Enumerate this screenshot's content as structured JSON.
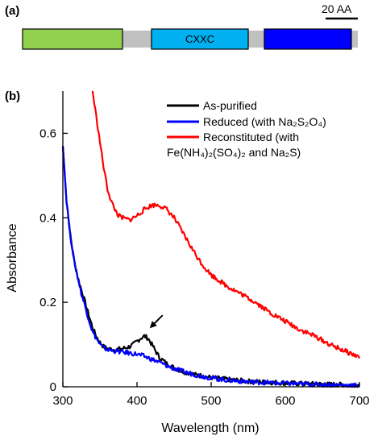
{
  "panel_a": {
    "label": "(a)",
    "scale_bar_label": "20 AA",
    "domain_label": "CXXC",
    "colors": {
      "backbone": "#c0c0c0",
      "domain1": "#92d050",
      "domain2": "#00b0f0",
      "domain3": "#0000ff"
    }
  },
  "panel_b": {
    "label": "(b)"
  },
  "chart_data": {
    "type": "line",
    "xlabel": "Wavelength (nm)",
    "ylabel": "Absorbance",
    "xlim": [
      300,
      700
    ],
    "ylim": [
      0,
      0.7
    ],
    "xticks": [
      "300",
      "400",
      "500",
      "600",
      "700"
    ],
    "yticks": [
      "0",
      "0.2",
      "0.4",
      "0.6"
    ],
    "grid": false,
    "legend_position": "top-right",
    "legend": {
      "as_purified": "As-purified",
      "reduced": "Reduced (with Na₂S₂O₄)",
      "reconstituted_line1": "Reconstituted (with",
      "reconstituted_line2": "Fe(NH₄)₂(SO₄)₂ and Na₂S)"
    },
    "annotation": {
      "type": "arrow",
      "x": 415,
      "y": 0.135
    },
    "series": [
      {
        "key": "as_purified",
        "color": "#000000",
        "x": [
          300,
          305,
          310,
          315,
          320,
          325,
          330,
          335,
          340,
          345,
          350,
          355,
          360,
          370,
          380,
          390,
          395,
          400,
          405,
          410,
          415,
          420,
          425,
          430,
          440,
          450,
          460,
          480,
          500,
          520,
          550,
          600,
          650,
          700
        ],
        "y": [
          0.57,
          0.44,
          0.36,
          0.3,
          0.26,
          0.23,
          0.2,
          0.17,
          0.14,
          0.12,
          0.105,
          0.095,
          0.09,
          0.088,
          0.09,
          0.095,
          0.1,
          0.108,
          0.115,
          0.12,
          0.115,
          0.1,
          0.085,
          0.07,
          0.055,
          0.045,
          0.037,
          0.028,
          0.022,
          0.018,
          0.013,
          0.009,
          0.006,
          0.004
        ]
      },
      {
        "key": "reduced",
        "color": "#0000ff",
        "x": [
          300,
          305,
          310,
          315,
          320,
          325,
          330,
          335,
          340,
          345,
          350,
          355,
          360,
          370,
          380,
          390,
          400,
          410,
          420,
          430,
          440,
          450,
          460,
          480,
          500,
          520,
          550,
          600,
          650,
          700
        ],
        "y": [
          0.57,
          0.44,
          0.36,
          0.3,
          0.26,
          0.22,
          0.19,
          0.16,
          0.13,
          0.115,
          0.1,
          0.092,
          0.088,
          0.085,
          0.082,
          0.08,
          0.077,
          0.072,
          0.065,
          0.058,
          0.05,
          0.043,
          0.037,
          0.028,
          0.021,
          0.016,
          0.012,
          0.008,
          0.005,
          0.003
        ]
      },
      {
        "key": "reconstituted",
        "color": "#ff0000",
        "x": [
          340,
          345,
          350,
          355,
          360,
          365,
          370,
          375,
          380,
          390,
          400,
          410,
          420,
          430,
          440,
          450,
          460,
          470,
          480,
          490,
          500,
          520,
          540,
          560,
          580,
          600,
          620,
          640,
          660,
          680,
          700
        ],
        "y": [
          0.7,
          0.64,
          0.58,
          0.52,
          0.47,
          0.44,
          0.42,
          0.405,
          0.4,
          0.395,
          0.405,
          0.42,
          0.43,
          0.43,
          0.42,
          0.4,
          0.37,
          0.34,
          0.31,
          0.285,
          0.265,
          0.24,
          0.22,
          0.2,
          0.175,
          0.155,
          0.135,
          0.12,
          0.1,
          0.085,
          0.07
        ]
      }
    ]
  }
}
